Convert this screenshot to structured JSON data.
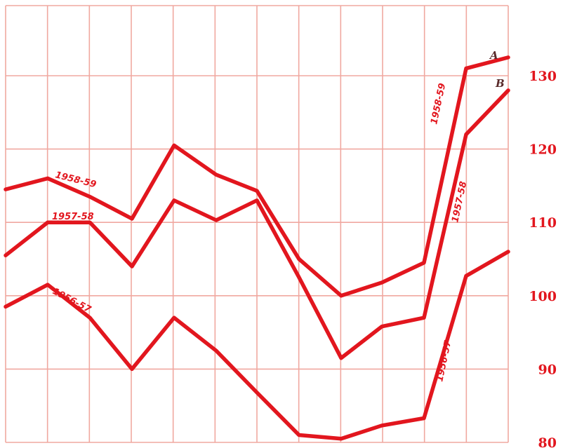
{
  "chart_data": {
    "type": "line",
    "title": "",
    "xlabel": "",
    "ylabel": "",
    "x": [
      1,
      2,
      3,
      4,
      5,
      6,
      7,
      8,
      9,
      10,
      11,
      12,
      13,
      14
    ],
    "ylim": [
      80,
      135
    ],
    "y_ticks": [
      "80",
      "90",
      "100",
      "110",
      "120",
      "130"
    ],
    "grid": true,
    "color": "#e2161e",
    "grid_color": "#f0a8a0",
    "series": [
      {
        "name": "1958-59",
        "end_label": "A",
        "values": [
          114.5,
          116,
          113.5,
          110.5,
          120.5,
          116.5,
          114.3,
          105,
          100,
          101.8,
          104.5,
          131,
          132.5,
          null
        ]
      },
      {
        "name": "1957-58",
        "end_label": "B",
        "values": [
          105.5,
          110,
          110,
          104,
          113,
          110.3,
          113,
          102.5,
          91.5,
          95.8,
          97,
          122,
          128,
          null
        ]
      },
      {
        "name": "1956-57",
        "end_label": "",
        "values": [
          98.5,
          101.5,
          97,
          90,
          97,
          92.5,
          86.8,
          81,
          80.5,
          82.3,
          83.3,
          102.7,
          106,
          null
        ]
      }
    ]
  }
}
